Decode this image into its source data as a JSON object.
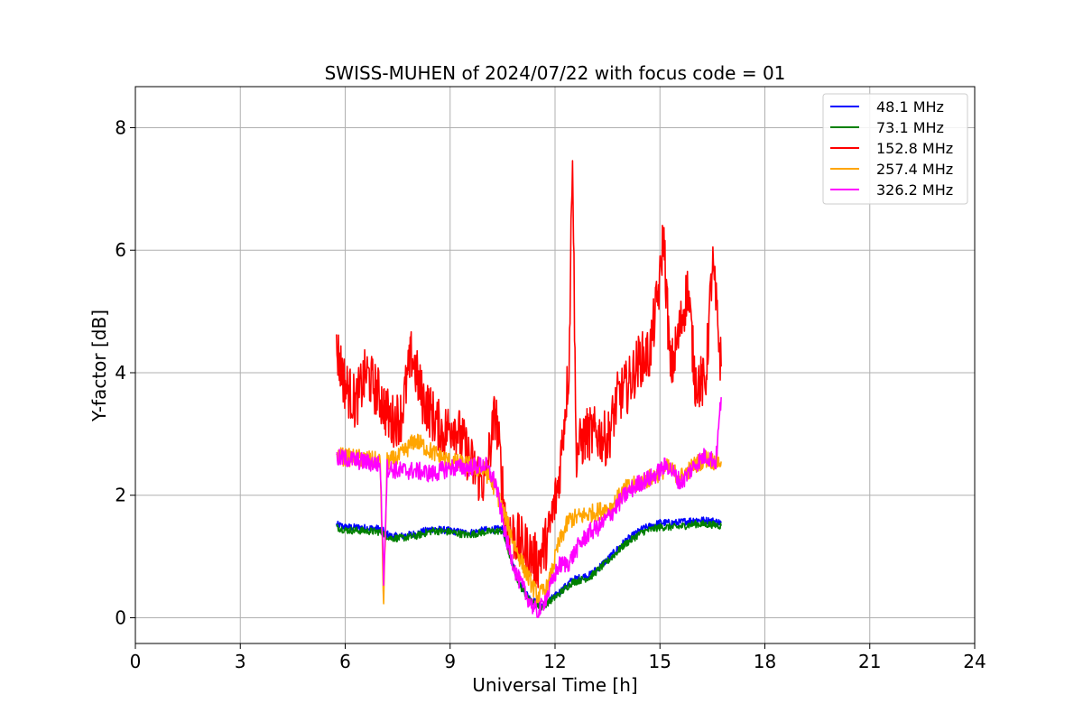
{
  "chart_data": {
    "type": "line",
    "title": "SWISS-MUHEN of 2024/07/22 with focus code = 01",
    "xlabel": "Universal Time [h]",
    "ylabel": "Y-factor [dB]",
    "xlim": [
      0,
      24
    ],
    "ylim": [
      -0.42,
      8.67
    ],
    "xticks": [
      0,
      3,
      6,
      9,
      12,
      15,
      18,
      21,
      24
    ],
    "yticks": [
      0,
      2,
      4,
      6,
      8
    ],
    "grid": true,
    "legend_position": "top-right",
    "series": [
      {
        "name": " 48.1 MHz",
        "color": "#0000ff",
        "x": [
          5.75,
          6.0,
          6.5,
          7.0,
          7.3,
          7.6,
          8.0,
          8.5,
          9.0,
          9.5,
          10.0,
          10.5,
          10.8,
          11.0,
          11.3,
          11.6,
          12.0,
          12.5,
          13.0,
          13.5,
          14.0,
          14.5,
          15.0,
          15.5,
          16.0,
          16.5,
          16.75
        ],
        "y": [
          1.52,
          1.48,
          1.47,
          1.45,
          1.33,
          1.33,
          1.37,
          1.45,
          1.42,
          1.38,
          1.43,
          1.45,
          0.85,
          0.55,
          0.3,
          0.2,
          0.35,
          0.62,
          0.7,
          0.95,
          1.25,
          1.45,
          1.55,
          1.55,
          1.6,
          1.58,
          1.55
        ]
      },
      {
        "name": " 73.1 MHz",
        "color": "#008000",
        "x": [
          5.75,
          6.0,
          6.5,
          7.0,
          7.3,
          7.6,
          8.0,
          8.5,
          9.0,
          9.5,
          10.0,
          10.5,
          10.8,
          11.0,
          11.3,
          11.6,
          12.0,
          12.5,
          13.0,
          13.5,
          14.0,
          14.5,
          15.0,
          15.5,
          16.0,
          16.5,
          16.75
        ],
        "y": [
          1.48,
          1.43,
          1.42,
          1.4,
          1.3,
          1.3,
          1.33,
          1.42,
          1.4,
          1.35,
          1.4,
          1.42,
          0.82,
          0.52,
          0.27,
          0.17,
          0.33,
          0.58,
          0.66,
          0.92,
          1.2,
          1.4,
          1.48,
          1.48,
          1.53,
          1.52,
          1.5
        ]
      },
      {
        "name": "152.8 MHz",
        "color": "#ff0000",
        "x": [
          5.75,
          6.0,
          6.3,
          6.6,
          7.0,
          7.3,
          7.6,
          7.9,
          8.2,
          8.5,
          8.8,
          9.1,
          9.4,
          9.7,
          10.0,
          10.3,
          10.6,
          10.9,
          11.2,
          11.5,
          11.8,
          12.1,
          12.4,
          12.5,
          12.6,
          12.9,
          13.2,
          13.5,
          13.8,
          14.1,
          14.4,
          14.7,
          15.0,
          15.1,
          15.3,
          15.5,
          15.8,
          16.0,
          16.3,
          16.5,
          16.75
        ],
        "y": [
          4.4,
          3.8,
          3.5,
          4.0,
          3.6,
          3.2,
          3.3,
          4.3,
          3.6,
          3.3,
          3.0,
          3.2,
          2.8,
          2.4,
          2.2,
          3.4,
          1.5,
          1.3,
          1.1,
          0.9,
          1.3,
          2.2,
          4.1,
          7.8,
          2.7,
          3.0,
          3.0,
          2.9,
          3.6,
          3.8,
          4.2,
          4.3,
          5.5,
          6.3,
          4.0,
          4.5,
          5.4,
          3.9,
          3.8,
          5.8,
          4.1
        ]
      },
      {
        "name": "257.4 MHz",
        "color": "#ffa500",
        "x": [
          5.75,
          6.0,
          6.5,
          7.0,
          7.1,
          7.2,
          7.5,
          8.0,
          8.5,
          9.0,
          9.5,
          10.0,
          10.3,
          10.6,
          10.9,
          11.2,
          11.5,
          11.8,
          12.1,
          12.4,
          12.7,
          13.0,
          13.3,
          13.6,
          14.0,
          14.4,
          14.8,
          15.2,
          15.6,
          16.0,
          16.3,
          16.6,
          16.75
        ],
        "y": [
          2.65,
          2.62,
          2.6,
          2.55,
          0.22,
          2.55,
          2.6,
          2.9,
          2.7,
          2.55,
          2.5,
          2.4,
          2.1,
          1.6,
          1.1,
          0.7,
          0.35,
          0.5,
          1.2,
          1.6,
          1.65,
          1.7,
          1.75,
          1.8,
          2.1,
          2.2,
          2.3,
          2.45,
          2.3,
          2.5,
          2.6,
          2.55,
          2.55
        ]
      },
      {
        "name": "326.2 MHz",
        "color": "#ff00ff",
        "x": [
          5.75,
          6.0,
          6.5,
          7.0,
          7.1,
          7.2,
          7.5,
          8.0,
          8.5,
          9.0,
          9.5,
          10.0,
          10.3,
          10.6,
          10.9,
          11.2,
          11.5,
          11.8,
          12.1,
          12.4,
          12.7,
          13.0,
          13.3,
          13.6,
          14.0,
          14.4,
          14.8,
          15.2,
          15.6,
          16.0,
          16.3,
          16.6,
          16.75
        ],
        "y": [
          2.6,
          2.6,
          2.55,
          2.5,
          0.65,
          2.45,
          2.4,
          2.4,
          2.35,
          2.45,
          2.45,
          2.5,
          2.2,
          1.3,
          0.7,
          0.35,
          0.05,
          0.4,
          0.85,
          0.9,
          1.2,
          1.4,
          1.5,
          1.7,
          2.0,
          2.2,
          2.3,
          2.5,
          2.2,
          2.5,
          2.65,
          2.55,
          3.6
        ]
      }
    ]
  }
}
